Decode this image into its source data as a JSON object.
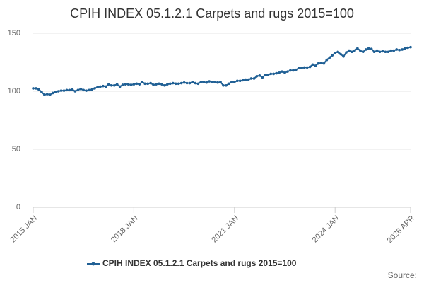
{
  "chart_data": {
    "type": "line",
    "title": "CPIH INDEX 05.1.2.1 Carpets and rugs 2015=100",
    "source": "Source:",
    "categories": [
      "2015 JAN",
      null,
      null,
      null,
      null,
      null,
      null,
      null,
      null,
      null,
      null,
      null,
      null,
      null,
      null,
      null,
      null,
      null,
      null,
      null,
      null,
      null,
      null,
      null,
      null,
      null,
      null,
      null,
      null,
      null,
      null,
      null,
      null,
      null,
      null,
      null,
      "2018 JAN",
      null,
      null,
      null,
      null,
      null,
      null,
      null,
      null,
      null,
      null,
      null,
      null,
      null,
      null,
      null,
      null,
      null,
      null,
      null,
      null,
      null,
      null,
      null,
      null,
      null,
      null,
      null,
      null,
      null,
      null,
      null,
      null,
      null,
      null,
      null,
      "2021 JAN",
      null,
      null,
      null,
      null,
      null,
      null,
      null,
      null,
      null,
      null,
      null,
      null,
      null,
      null,
      null,
      null,
      null,
      null,
      null,
      null,
      null,
      null,
      null,
      null,
      null,
      null,
      null,
      null,
      null,
      null,
      null,
      null,
      null,
      null,
      null,
      "2024 JAN",
      null,
      null,
      null,
      null,
      null,
      null,
      null,
      null,
      null,
      null,
      null,
      null,
      null,
      null,
      null,
      null,
      null,
      null,
      null,
      null,
      null,
      null,
      null,
      null,
      null,
      null,
      "2026 APR"
    ],
    "series": [
      {
        "name": "CPIH INDEX 05.1.2.1 Carpets and rugs 2015=100",
        "color": "#206095",
        "values": [
          102.5,
          102.5,
          101.5,
          99.5,
          97,
          97.5,
          97,
          98.5,
          99.5,
          100,
          100.5,
          100.5,
          101,
          101,
          101.5,
          100,
          101,
          102,
          101,
          100.5,
          101,
          101.5,
          102.5,
          103.5,
          104,
          104.5,
          104,
          106,
          105,
          105,
          106,
          104,
          105.5,
          106,
          106,
          105.5,
          106,
          106.5,
          106,
          108,
          106.5,
          106.5,
          107,
          105.5,
          106,
          106.5,
          106,
          105,
          106,
          106.5,
          107,
          106.5,
          106.5,
          107,
          107.5,
          107,
          107,
          108,
          107,
          106.5,
          108,
          108,
          107.5,
          108.5,
          108,
          108,
          107.5,
          108,
          105,
          105,
          106.5,
          108,
          108,
          109,
          109,
          109.5,
          110,
          110,
          111,
          111,
          113,
          113.5,
          112,
          114,
          114,
          115,
          115,
          115.5,
          116,
          117,
          116,
          117,
          118,
          118,
          118.5,
          120,
          120,
          120.5,
          120.5,
          121,
          123,
          122,
          124,
          124.5,
          124,
          127,
          129,
          131,
          133,
          134,
          132,
          130,
          133.5,
          135,
          134,
          135,
          137,
          135,
          134,
          136,
          137,
          136.5,
          134,
          135,
          134,
          134.5,
          134,
          134,
          135,
          135,
          136,
          135.5,
          136,
          137,
          137.5,
          138
        ]
      }
    ],
    "ylim": [
      0,
      150
    ],
    "yticks": [
      0,
      50,
      100,
      150
    ],
    "grid": true
  }
}
